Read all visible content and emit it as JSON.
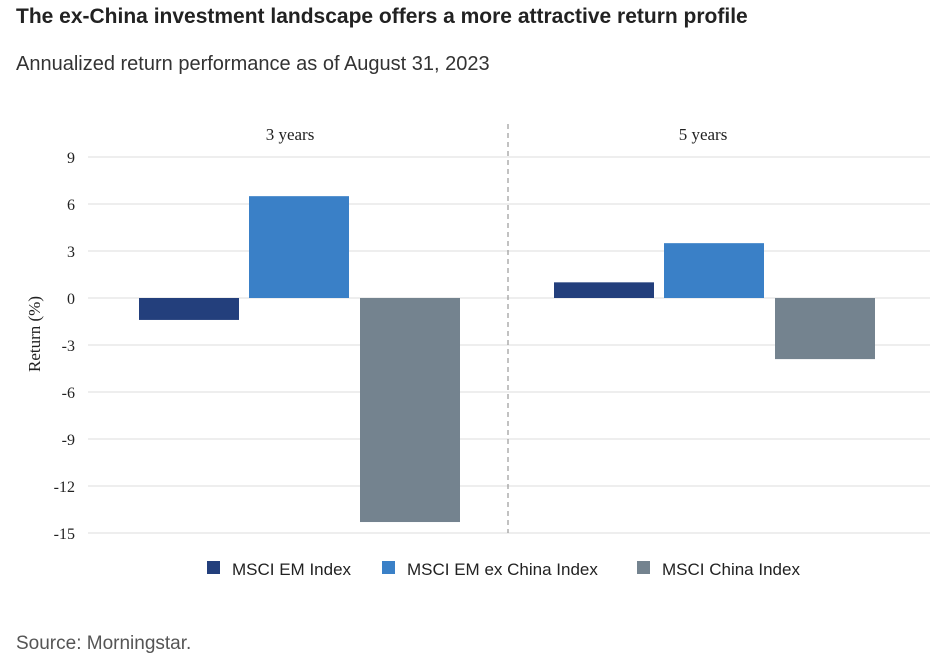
{
  "title": "The ex-China investment landscape offers a more attractive return profile",
  "subtitle": "Annualized return performance as of August 31, 2023",
  "source": "Source: Morningstar.",
  "colors": {
    "msci_em": "#233f7c",
    "msci_em_ex_china": "#3a80c7",
    "msci_china": "#74838f",
    "gridline": "#dddddd",
    "divider": "#9a9a9a"
  },
  "chart_data": {
    "type": "bar",
    "categories": [
      "3 years",
      "5 years"
    ],
    "series": [
      {
        "name": "MSCI EM Index",
        "values": [
          -1.4,
          1.0
        ]
      },
      {
        "name": "MSCI EM ex China Index",
        "values": [
          6.5,
          3.5
        ]
      },
      {
        "name": "MSCI China Index",
        "values": [
          -14.3,
          -3.9
        ]
      }
    ],
    "ylabel": "Return (%)",
    "ylim": [
      -15,
      9
    ],
    "yticks": [
      9,
      6,
      3,
      0,
      -3,
      -6,
      -9,
      -12,
      -15
    ],
    "grid": true,
    "legend_position": "bottom"
  }
}
